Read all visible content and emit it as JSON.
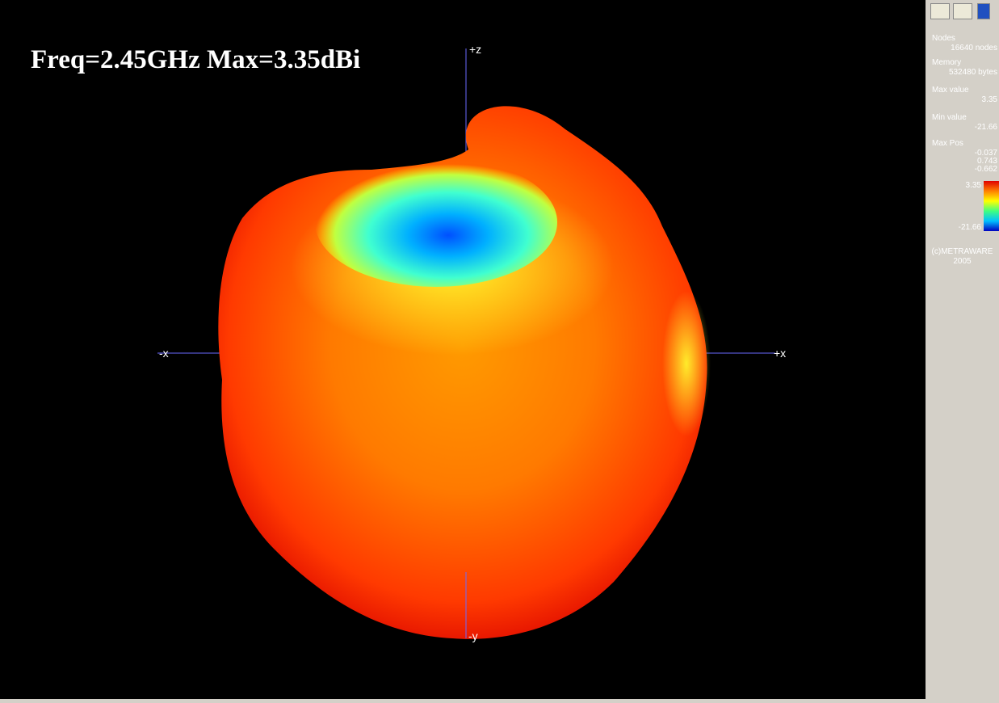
{
  "viewport": {
    "title": "Freq=2.45GHz  Max=3.35dBi",
    "axes": {
      "z_pos": "+z",
      "x_neg": "-x",
      "x_pos": "+x",
      "y_neg": "-y"
    }
  },
  "panel": {
    "nodes": {
      "label": "Nodes",
      "value": "16640 nodes"
    },
    "memory": {
      "label": "Memory",
      "value": "532480 bytes"
    },
    "max_value": {
      "label": "Max value",
      "value": "3.35"
    },
    "min_value": {
      "label": "Min value",
      "value": "-21.66"
    },
    "max_pos": {
      "label": "Max Pos",
      "values": [
        "-0.037",
        "0.743",
        "-0.662"
      ]
    },
    "colorbar": {
      "max": "3.35",
      "min": "-21.66"
    },
    "copyright": [
      "(c)METRAWARE",
      "2005"
    ]
  }
}
